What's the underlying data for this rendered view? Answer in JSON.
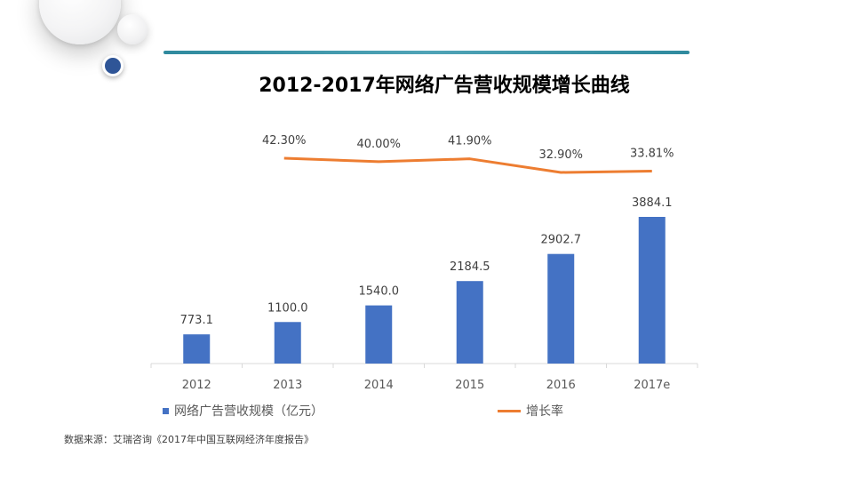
{
  "title": "2012-2017年网络广告营收规模增长曲线",
  "source": "数据来源：艾瑞咨询《2017年中国互联网经济年度报告》",
  "legend": {
    "bar_label": "网络广告营收规模（亿元）",
    "line_label": "增长率"
  },
  "colors": {
    "bar": "#4472c4",
    "line": "#ed7d31",
    "accent_rule": "#2f8a9e"
  },
  "chart_data": {
    "type": "bar+line",
    "categories": [
      "2012",
      "2013",
      "2014",
      "2015",
      "2016",
      "2017e"
    ],
    "series": [
      {
        "name": "网络广告营收规模（亿元）",
        "type": "bar",
        "values": [
          773.1,
          1100.0,
          1540.0,
          2184.5,
          2902.7,
          3884.1
        ],
        "labels": [
          "773.1",
          "1100.0",
          "1540.0",
          "2184.5",
          "2902.7",
          "3884.1"
        ]
      },
      {
        "name": "增长率",
        "type": "line",
        "values": [
          null,
          42.3,
          40.0,
          41.9,
          32.9,
          33.81
        ],
        "labels": [
          "",
          "42.30%",
          "40.00%",
          "41.90%",
          "32.90%",
          "33.81%"
        ]
      }
    ],
    "grid": false,
    "legend_position": "bottom"
  }
}
